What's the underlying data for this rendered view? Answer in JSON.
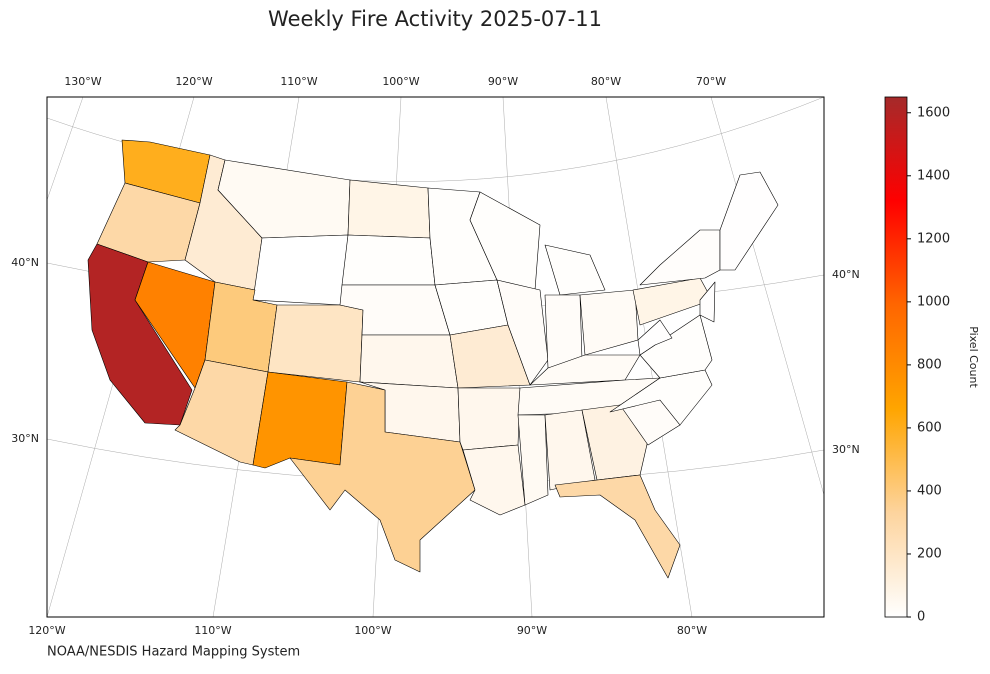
{
  "chart_data": {
    "type": "choropleth",
    "title": "Weekly Fire Activity 2025-07-11",
    "source": "NOAA/NESDIS Hazard Mapping System",
    "lon_labels_top": [
      "130°W",
      "120°W",
      "110°W",
      "100°W",
      "90°W",
      "80°W",
      "70°W"
    ],
    "lon_labels_bottom": [
      "120°W",
      "110°W",
      "100°W",
      "90°W",
      "80°W"
    ],
    "lat_labels_left": [
      "40°N",
      "30°N"
    ],
    "lat_labels_right": [
      "40°N",
      "30°N"
    ],
    "values": [
      600,
      300,
      1600,
      850,
      150,
      40,
      0,
      400,
      300,
      200,
      750,
      80,
      10,
      20,
      60,
      60,
      350,
      10,
      10,
      150,
      60,
      60,
      10,
      20,
      10,
      20,
      30,
      30,
      30,
      40,
      60,
      100,
      300,
      20,
      10,
      10,
      5,
      80,
      15,
      5,
      5
    ],
    "colorbar": {
      "label": "Pixel Count",
      "ylim": [
        0,
        1650
      ],
      "yticks": [
        0,
        200,
        400,
        600,
        800,
        1000,
        1200,
        1400,
        1600
      ],
      "colors": [
        "#ffffff",
        "#fdd49e",
        "#ffa500",
        "#ff6600",
        "#ff0000",
        "#a52a2a"
      ]
    }
  }
}
